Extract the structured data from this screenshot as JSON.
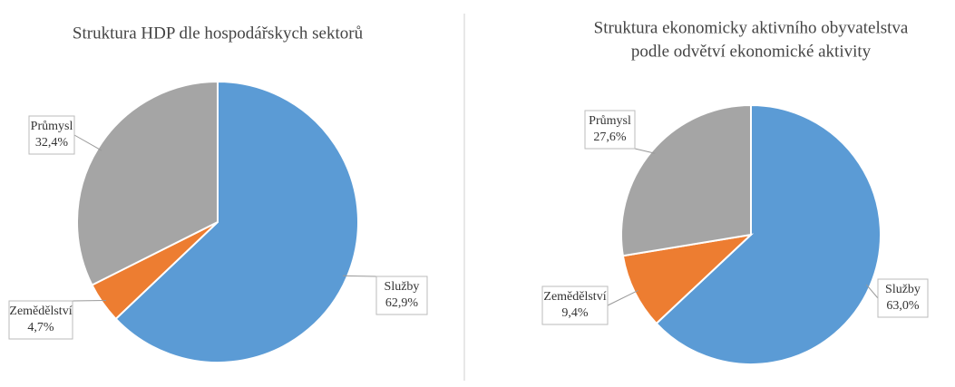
{
  "chart_data": [
    {
      "type": "pie",
      "title": [
        "Struktura HDP dle hospodářskych sektorů"
      ],
      "categories": [
        "Služby",
        "Zemědělství",
        "Průmysl"
      ],
      "values": [
        62.9,
        4.7,
        32.4
      ],
      "value_labels": [
        "62,9%",
        "4,7%",
        "32,4%"
      ],
      "colors": [
        "#5b9bd5",
        "#ed7d31",
        "#a5a5a5"
      ]
    },
    {
      "type": "pie",
      "title": [
        "Struktura ekonomicky aktivního obyvatelstva",
        "podle odvětví ekonomické aktivity"
      ],
      "categories": [
        "Služby",
        "Zemědělství",
        "Průmysl"
      ],
      "values": [
        63.0,
        9.4,
        27.6
      ],
      "value_labels": [
        "63,0%",
        "9,4%",
        "27,6%"
      ],
      "colors": [
        "#5b9bd5",
        "#ed7d31",
        "#a5a5a5"
      ]
    }
  ]
}
